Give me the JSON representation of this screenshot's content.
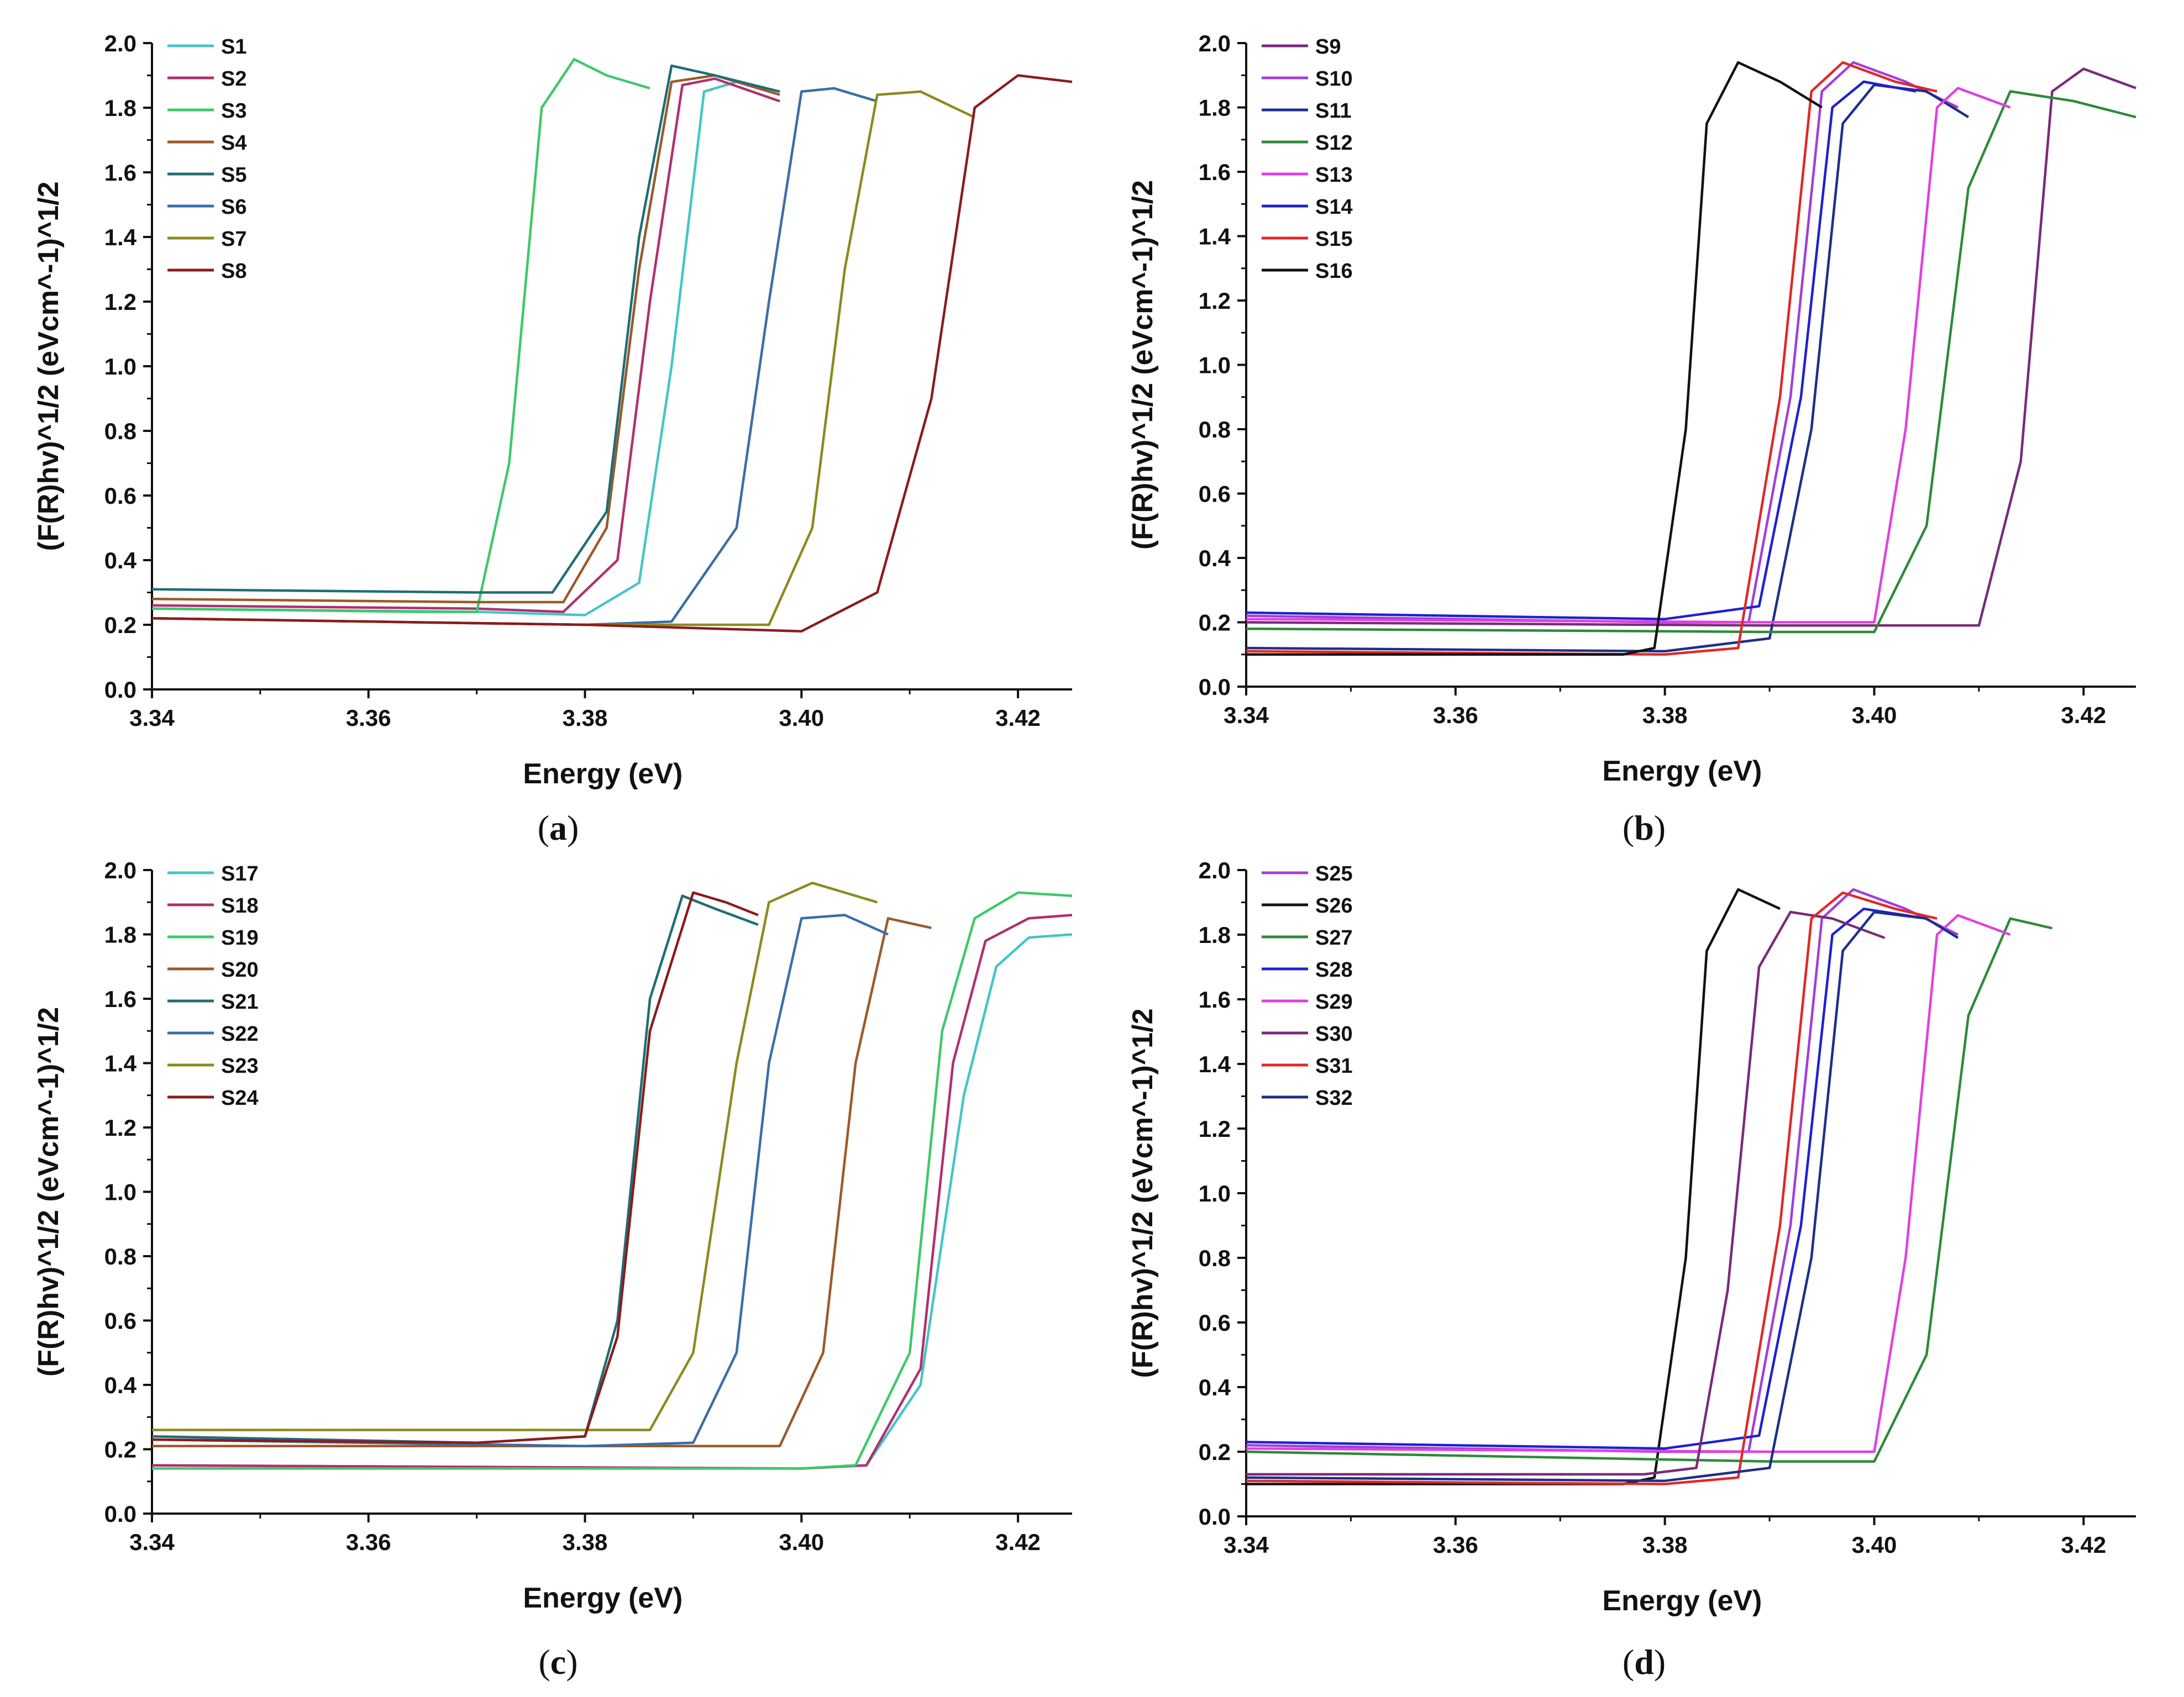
{
  "chart_data": [
    {
      "type": "line",
      "panel": "a",
      "xlabel": "Energy (eV)",
      "ylabel": "(F(R)hv)^1/2 (eVcm^-1)^1/2",
      "xlim": [
        3.34,
        3.425
      ],
      "ylim": [
        0.0,
        2.0
      ],
      "xticks": [
        3.34,
        3.36,
        3.38,
        3.4,
        3.42
      ],
      "xtick_labels": [
        "3.34",
        "3.36",
        "3.38",
        "3.40",
        "3.42"
      ],
      "yticks": [
        0.0,
        0.2,
        0.4,
        0.6,
        0.8,
        1.0,
        1.2,
        1.4,
        1.6,
        1.8,
        2.0
      ],
      "ytick_labels": [
        "0.0",
        "0.2",
        "0.4",
        "0.6",
        "0.8",
        "1.0",
        "1.2",
        "1.4",
        "1.6",
        "1.8",
        "2.0"
      ],
      "legend_position": "top-left",
      "series": [
        {
          "name": "S1",
          "color": "#45c4c8",
          "x": [
            3.34,
            3.37,
            3.38,
            3.385,
            3.388,
            3.391,
            3.394,
            3.398
          ],
          "y": [
            0.25,
            0.24,
            0.23,
            0.33,
            1.0,
            1.85,
            1.88,
            1.85
          ]
        },
        {
          "name": "S2",
          "color": "#b0306e",
          "x": [
            3.34,
            3.37,
            3.378,
            3.383,
            3.386,
            3.389,
            3.392,
            3.398
          ],
          "y": [
            0.26,
            0.25,
            0.24,
            0.4,
            1.2,
            1.87,
            1.89,
            1.82
          ]
        },
        {
          "name": "S3",
          "color": "#3ec86a",
          "x": [
            3.34,
            3.365,
            3.37,
            3.373,
            3.376,
            3.379,
            3.382,
            3.386
          ],
          "y": [
            0.25,
            0.24,
            0.24,
            0.7,
            1.8,
            1.95,
            1.9,
            1.86
          ]
        },
        {
          "name": "S4",
          "color": "#9a5a2a",
          "x": [
            3.34,
            3.37,
            3.378,
            3.382,
            3.385,
            3.388,
            3.392,
            3.398
          ],
          "y": [
            0.28,
            0.27,
            0.27,
            0.5,
            1.3,
            1.88,
            1.9,
            1.84
          ]
        },
        {
          "name": "S5",
          "color": "#1f6e76",
          "x": [
            3.34,
            3.37,
            3.377,
            3.382,
            3.385,
            3.388,
            3.392,
            3.398
          ],
          "y": [
            0.31,
            0.3,
            0.3,
            0.55,
            1.4,
            1.93,
            1.9,
            1.85
          ]
        },
        {
          "name": "S6",
          "color": "#3a6ea6",
          "x": [
            3.34,
            3.38,
            3.388,
            3.394,
            3.397,
            3.4,
            3.403,
            3.407
          ],
          "y": [
            0.22,
            0.2,
            0.21,
            0.5,
            1.2,
            1.85,
            1.86,
            1.82
          ]
        },
        {
          "name": "S7",
          "color": "#8c8a1e",
          "x": [
            3.34,
            3.38,
            3.397,
            3.401,
            3.404,
            3.407,
            3.411,
            3.416
          ],
          "y": [
            0.22,
            0.2,
            0.2,
            0.5,
            1.3,
            1.84,
            1.85,
            1.77
          ]
        },
        {
          "name": "S8",
          "color": "#8a1c1c",
          "x": [
            3.34,
            3.38,
            3.4,
            3.407,
            3.412,
            3.416,
            3.42,
            3.425
          ],
          "y": [
            0.22,
            0.2,
            0.18,
            0.3,
            0.9,
            1.8,
            1.9,
            1.88
          ]
        }
      ]
    },
    {
      "type": "line",
      "panel": "b",
      "xlabel": "Energy (eV)",
      "ylabel": "(F(R)hv)^1/2 (eVcm^-1)^1/2",
      "xlim": [
        3.34,
        3.425
      ],
      "ylim": [
        0.0,
        2.0
      ],
      "xticks": [
        3.34,
        3.36,
        3.38,
        3.4,
        3.42
      ],
      "xtick_labels": [
        "3.34",
        "3.36",
        "3.38",
        "3.40",
        "3.42"
      ],
      "yticks": [
        0.0,
        0.2,
        0.4,
        0.6,
        0.8,
        1.0,
        1.2,
        1.4,
        1.6,
        1.8,
        2.0
      ],
      "ytick_labels": [
        "0.0",
        "0.2",
        "0.4",
        "0.6",
        "0.8",
        "1.0",
        "1.2",
        "1.4",
        "1.6",
        "1.8",
        "2.0"
      ],
      "legend_position": "top-left",
      "series": [
        {
          "name": "S9",
          "color": "#7a2a7a",
          "x": [
            3.34,
            3.39,
            3.41,
            3.414,
            3.417,
            3.42,
            3.425
          ],
          "y": [
            0.2,
            0.19,
            0.19,
            0.7,
            1.85,
            1.92,
            1.86
          ]
        },
        {
          "name": "S10",
          "color": "#a040d8",
          "x": [
            3.34,
            3.38,
            3.388,
            3.392,
            3.395,
            3.398,
            3.403,
            3.408
          ],
          "y": [
            0.22,
            0.2,
            0.2,
            0.9,
            1.85,
            1.94,
            1.88,
            1.8
          ]
        },
        {
          "name": "S11",
          "color": "#1e2e8a",
          "x": [
            3.34,
            3.38,
            3.39,
            3.394,
            3.397,
            3.4,
            3.405,
            3.409
          ],
          "y": [
            0.12,
            0.11,
            0.15,
            0.8,
            1.75,
            1.87,
            1.85,
            1.77
          ]
        },
        {
          "name": "S12",
          "color": "#2e8a3a",
          "x": [
            3.34,
            3.39,
            3.4,
            3.405,
            3.409,
            3.413,
            3.419,
            3.425
          ],
          "y": [
            0.18,
            0.17,
            0.17,
            0.5,
            1.55,
            1.85,
            1.82,
            1.77
          ]
        },
        {
          "name": "S13",
          "color": "#e040e0",
          "x": [
            3.34,
            3.39,
            3.4,
            3.403,
            3.406,
            3.408,
            3.413
          ],
          "y": [
            0.21,
            0.2,
            0.2,
            0.8,
            1.8,
            1.86,
            1.8
          ]
        },
        {
          "name": "S14",
          "color": "#2020d0",
          "x": [
            3.34,
            3.38,
            3.389,
            3.393,
            3.396,
            3.399,
            3.404
          ],
          "y": [
            0.23,
            0.21,
            0.25,
            0.9,
            1.8,
            1.88,
            1.85
          ]
        },
        {
          "name": "S15",
          "color": "#e02828",
          "x": [
            3.34,
            3.38,
            3.387,
            3.391,
            3.394,
            3.397,
            3.402,
            3.406
          ],
          "y": [
            0.11,
            0.1,
            0.12,
            0.9,
            1.85,
            1.94,
            1.88,
            1.85
          ]
        },
        {
          "name": "S16",
          "color": "#111111",
          "x": [
            3.34,
            3.376,
            3.379,
            3.382,
            3.384,
            3.387,
            3.391,
            3.395
          ],
          "y": [
            0.1,
            0.1,
            0.12,
            0.8,
            1.75,
            1.94,
            1.88,
            1.8
          ]
        }
      ]
    },
    {
      "type": "line",
      "panel": "c",
      "xlabel": "Energy (eV)",
      "ylabel": "(F(R)hv)^1/2 (eVcm^-1)^1/2",
      "xlim": [
        3.34,
        3.425
      ],
      "ylim": [
        0.0,
        2.0
      ],
      "xticks": [
        3.34,
        3.36,
        3.38,
        3.4,
        3.42
      ],
      "xtick_labels": [
        "3.34",
        "3.36",
        "3.38",
        "3.40",
        "3.42"
      ],
      "yticks": [
        0.0,
        0.2,
        0.4,
        0.6,
        0.8,
        1.0,
        1.2,
        1.4,
        1.6,
        1.8,
        2.0
      ],
      "ytick_labels": [
        "0.0",
        "0.2",
        "0.4",
        "0.6",
        "0.8",
        "1.0",
        "1.2",
        "1.4",
        "1.6",
        "1.8",
        "2.0"
      ],
      "legend_position": "top-left",
      "series": [
        {
          "name": "S17",
          "color": "#45c4c8",
          "x": [
            3.34,
            3.4,
            3.406,
            3.411,
            3.415,
            3.418,
            3.421,
            3.425
          ],
          "y": [
            0.15,
            0.14,
            0.15,
            0.4,
            1.3,
            1.7,
            1.79,
            1.8
          ]
        },
        {
          "name": "S18",
          "color": "#b0306e",
          "x": [
            3.34,
            3.4,
            3.406,
            3.411,
            3.414,
            3.417,
            3.421,
            3.425
          ],
          "y": [
            0.15,
            0.14,
            0.15,
            0.45,
            1.4,
            1.78,
            1.85,
            1.86
          ]
        },
        {
          "name": "S19",
          "color": "#3ec86a",
          "x": [
            3.34,
            3.4,
            3.405,
            3.41,
            3.413,
            3.416,
            3.42,
            3.425
          ],
          "y": [
            0.14,
            0.14,
            0.15,
            0.5,
            1.5,
            1.85,
            1.93,
            1.92
          ]
        },
        {
          "name": "S20",
          "color": "#9a5a2a",
          "x": [
            3.34,
            3.38,
            3.398,
            3.402,
            3.405,
            3.408,
            3.412
          ],
          "y": [
            0.21,
            0.21,
            0.21,
            0.5,
            1.4,
            1.85,
            1.82
          ]
        },
        {
          "name": "S21",
          "color": "#1f6e76",
          "x": [
            3.34,
            3.37,
            3.38,
            3.383,
            3.386,
            3.389,
            3.392,
            3.396
          ],
          "y": [
            0.24,
            0.22,
            0.24,
            0.6,
            1.6,
            1.92,
            1.88,
            1.83
          ]
        },
        {
          "name": "S22",
          "color": "#3a6ea6",
          "x": [
            3.34,
            3.38,
            3.39,
            3.394,
            3.397,
            3.4,
            3.404,
            3.408
          ],
          "y": [
            0.23,
            0.21,
            0.22,
            0.5,
            1.4,
            1.85,
            1.86,
            1.8
          ]
        },
        {
          "name": "S23",
          "color": "#8c8a1e",
          "x": [
            3.34,
            3.37,
            3.386,
            3.39,
            3.394,
            3.397,
            3.401,
            3.407
          ],
          "y": [
            0.26,
            0.26,
            0.26,
            0.5,
            1.4,
            1.9,
            1.96,
            1.9
          ]
        },
        {
          "name": "S24",
          "color": "#8a1c1c",
          "x": [
            3.34,
            3.37,
            3.38,
            3.383,
            3.386,
            3.39,
            3.393,
            3.396
          ],
          "y": [
            0.23,
            0.22,
            0.24,
            0.55,
            1.5,
            1.93,
            1.9,
            1.86
          ]
        }
      ]
    },
    {
      "type": "line",
      "panel": "d",
      "xlabel": "Energy (eV)",
      "ylabel": "(F(R)hv)^1/2 (eVcm^-1)^1/2",
      "xlim": [
        3.34,
        3.425
      ],
      "ylim": [
        0.0,
        2.0
      ],
      "xticks": [
        3.34,
        3.36,
        3.38,
        3.4,
        3.42
      ],
      "xtick_labels": [
        "3.34",
        "3.36",
        "3.38",
        "3.40",
        "3.42"
      ],
      "yticks": [
        0.0,
        0.2,
        0.4,
        0.6,
        0.8,
        1.0,
        1.2,
        1.4,
        1.6,
        1.8,
        2.0
      ],
      "ytick_labels": [
        "0.0",
        "0.2",
        "0.4",
        "0.6",
        "0.8",
        "1.0",
        "1.2",
        "1.4",
        "1.6",
        "1.8",
        "2.0"
      ],
      "legend_position": "top-left",
      "series": [
        {
          "name": "S25",
          "color": "#a040d8",
          "x": [
            3.34,
            3.38,
            3.388,
            3.392,
            3.395,
            3.398,
            3.403,
            3.408
          ],
          "y": [
            0.22,
            0.2,
            0.2,
            0.9,
            1.85,
            1.94,
            1.88,
            1.8
          ]
        },
        {
          "name": "S26",
          "color": "#111111",
          "x": [
            3.34,
            3.376,
            3.379,
            3.382,
            3.384,
            3.387,
            3.391
          ],
          "y": [
            0.1,
            0.1,
            0.12,
            0.8,
            1.75,
            1.94,
            1.88
          ]
        },
        {
          "name": "S27",
          "color": "#2e8a3a",
          "x": [
            3.34,
            3.39,
            3.4,
            3.405,
            3.409,
            3.413,
            3.417
          ],
          "y": [
            0.2,
            0.17,
            0.17,
            0.5,
            1.55,
            1.85,
            1.82
          ]
        },
        {
          "name": "S28",
          "color": "#2020d0",
          "x": [
            3.34,
            3.38,
            3.389,
            3.393,
            3.396,
            3.399,
            3.405
          ],
          "y": [
            0.23,
            0.21,
            0.25,
            0.9,
            1.8,
            1.88,
            1.85
          ]
        },
        {
          "name": "S29",
          "color": "#e040e0",
          "x": [
            3.34,
            3.39,
            3.4,
            3.403,
            3.406,
            3.408,
            3.413
          ],
          "y": [
            0.21,
            0.2,
            0.2,
            0.8,
            1.8,
            1.86,
            1.8
          ]
        },
        {
          "name": "S30",
          "color": "#7a2a7a",
          "x": [
            3.34,
            3.378,
            3.383,
            3.386,
            3.389,
            3.392,
            3.396,
            3.401
          ],
          "y": [
            0.13,
            0.13,
            0.15,
            0.7,
            1.7,
            1.87,
            1.85,
            1.79
          ]
        },
        {
          "name": "S31",
          "color": "#e02828",
          "x": [
            3.34,
            3.38,
            3.387,
            3.391,
            3.394,
            3.397,
            3.402,
            3.406
          ],
          "y": [
            0.11,
            0.1,
            0.12,
            0.9,
            1.85,
            1.93,
            1.88,
            1.85
          ]
        },
        {
          "name": "S32",
          "color": "#1e2e8a",
          "x": [
            3.34,
            3.38,
            3.39,
            3.394,
            3.397,
            3.4,
            3.405,
            3.408
          ],
          "y": [
            0.12,
            0.11,
            0.15,
            0.8,
            1.75,
            1.87,
            1.85,
            1.79
          ]
        }
      ]
    }
  ]
}
